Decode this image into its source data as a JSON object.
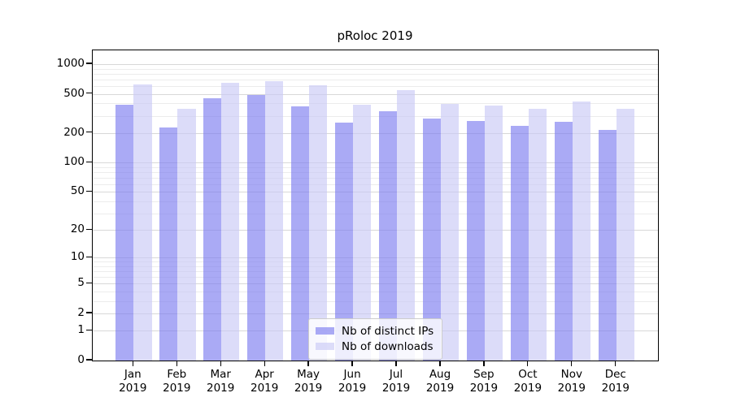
{
  "chart_data": {
    "type": "bar",
    "title": "pRoloc 2019",
    "categories": [
      "Jan 2019",
      "Feb 2019",
      "Mar 2019",
      "Apr 2019",
      "May 2019",
      "Jun 2019",
      "Jul 2019",
      "Aug 2019",
      "Sep 2019",
      "Oct 2019",
      "Nov 2019",
      "Dec 2019"
    ],
    "series": [
      {
        "name": "Nb of distinct IPs",
        "color": "rgba(124,124,240,0.65)",
        "solid_color": "#aaaaf5",
        "values": [
          390,
          228,
          455,
          490,
          370,
          257,
          335,
          280,
          267,
          238,
          262,
          214
        ]
      },
      {
        "name": "Nb of downloads",
        "color": "rgba(201,201,246,0.65)",
        "solid_color": "#dbdbf8",
        "values": [
          620,
          350,
          650,
          675,
          615,
          390,
          545,
          395,
          382,
          355,
          420,
          355
        ]
      }
    ],
    "xlabel": "",
    "ylabel": "",
    "y_scale": "log1p",
    "y_ticks": [
      0,
      1,
      2,
      5,
      10,
      20,
      50,
      100,
      200,
      500,
      1000
    ],
    "ylim": [
      0,
      1380
    ],
    "grid": "horizontal log gridlines (major at 1-2-5 ticks, minor at 3,4,6,7,8,9 per decade)",
    "legend_position": "inside plot, lower center"
  },
  "colors": {
    "axis": "#000000",
    "grid_major": "#d8d8d8",
    "grid_minor": "#ececec",
    "legend_border": "#cccccc",
    "background": "#ffffff"
  }
}
